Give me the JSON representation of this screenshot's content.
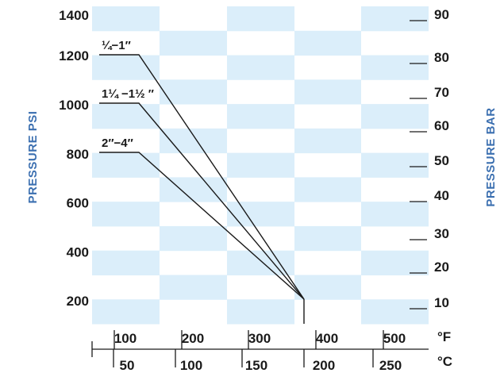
{
  "chart_data": {
    "type": "line",
    "title": "",
    "y_left": {
      "label": "PRESSURE PSI",
      "unit": "psi",
      "ticks": [
        200,
        400,
        600,
        800,
        1000,
        1200,
        1400
      ],
      "range": [
        0,
        1400
      ]
    },
    "y_right": {
      "label": "PRESSURE BAR",
      "unit": "bar",
      "ticks": [
        10,
        20,
        30,
        40,
        50,
        60,
        70,
        80,
        90
      ]
    },
    "x_top": {
      "unit": "°F",
      "ticks": [
        100,
        200,
        300,
        400,
        500
      ]
    },
    "x_bottom": {
      "unit": "°C",
      "ticks": [
        50,
        100,
        150,
        200,
        250
      ]
    },
    "series": [
      {
        "name": "¼–1″",
        "label": "¼−1″",
        "points": [
          {
            "temp_f": 20,
            "psi": 1230
          },
          {
            "temp_f": 90,
            "psi": 1230
          },
          {
            "temp_f": 365,
            "psi": 130
          }
        ]
      },
      {
        "name": "1¼–1½″",
        "label": "1¼ −1½ ″",
        "points": [
          {
            "temp_f": 20,
            "psi": 1030
          },
          {
            "temp_f": 90,
            "psi": 1030
          },
          {
            "temp_f": 365,
            "psi": 130
          }
        ]
      },
      {
        "name": "2″–4″",
        "label": "2″−4″",
        "points": [
          {
            "temp_f": 20,
            "psi": 830
          },
          {
            "temp_f": 90,
            "psi": 830
          },
          {
            "temp_f": 365,
            "psi": 130
          }
        ]
      }
    ],
    "max_temp_f": 365,
    "grid": "alternating-shaded-cells",
    "colors": {
      "cell": "#dbeefa",
      "axis_title": "#3b6fb0",
      "line": "#1a1a1a"
    }
  }
}
